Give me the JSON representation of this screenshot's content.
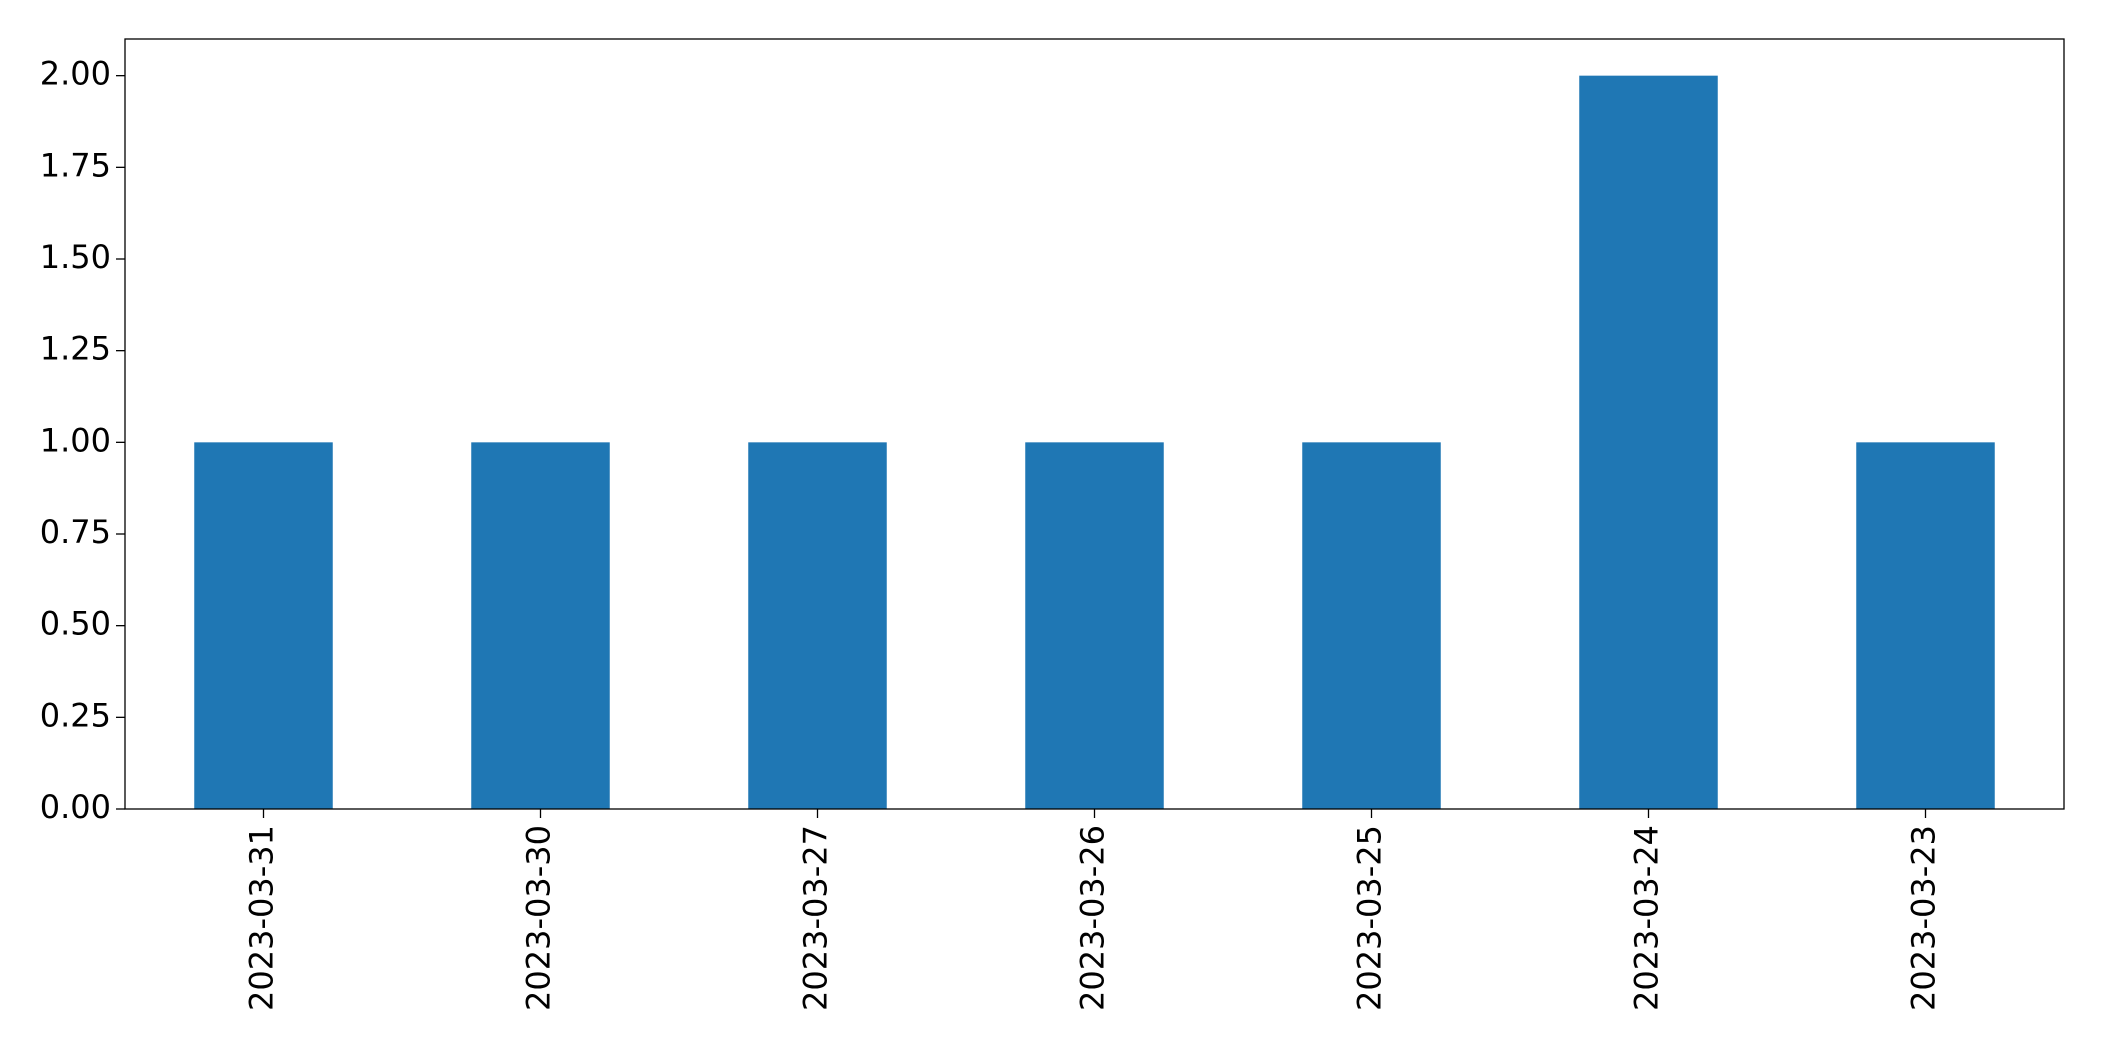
{
  "chart_data": {
    "type": "bar",
    "categories": [
      "2023-03-31",
      "2023-03-30",
      "2023-03-27",
      "2023-03-26",
      "2023-03-25",
      "2023-03-24",
      "2023-03-23"
    ],
    "values": [
      1,
      1,
      1,
      1,
      1,
      2,
      1
    ],
    "color": "#1f77b4",
    "ylim": [
      0,
      2.1
    ],
    "yticks": [
      {
        "value": 0,
        "label": "0.00"
      },
      {
        "value": 0.25,
        "label": "0.25"
      },
      {
        "value": 0.5,
        "label": "0.50"
      },
      {
        "value": 0.75,
        "label": "0.75"
      },
      {
        "value": 1,
        "label": "1.00"
      },
      {
        "value": 1.25,
        "label": "1.25"
      },
      {
        "value": 1.5,
        "label": "1.50"
      },
      {
        "value": 1.75,
        "label": "1.75"
      },
      {
        "value": 2,
        "label": "2.00"
      }
    ],
    "grid": false
  }
}
